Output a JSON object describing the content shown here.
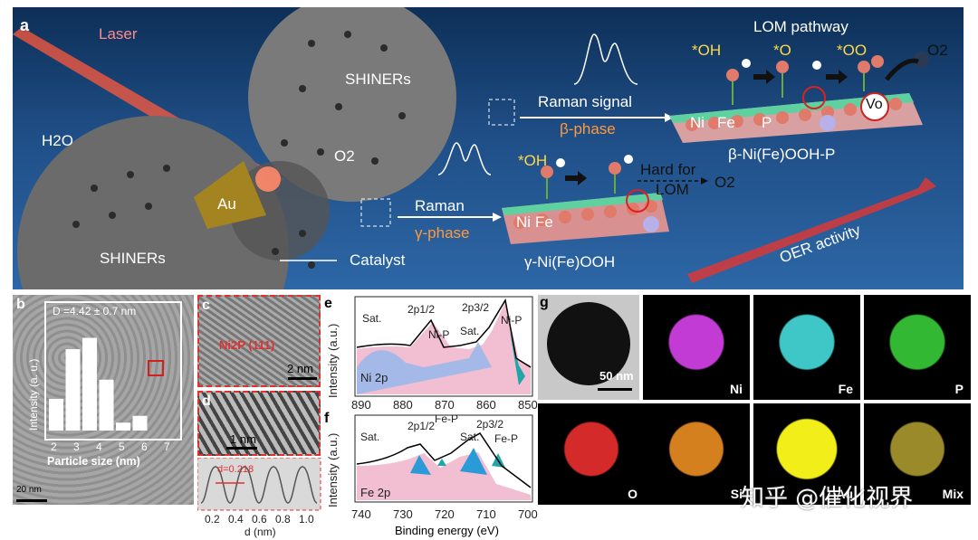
{
  "panel_a": {
    "letter": "a",
    "laser": "Laser",
    "h2o": "H2O",
    "shiners_top": "SHINERs",
    "shiners_bottom": "SHINERs",
    "au": "Au",
    "o2": "O2",
    "catalyst": "Catalyst",
    "raman_signal": "Raman signal",
    "beta_phase": "β-phase",
    "raman": "Raman",
    "gamma_phase": "γ-phase",
    "lom_pathway": "LOM pathway",
    "oh_top": "*OH",
    "o_top": "*O",
    "oo_top": "*OO",
    "o2_top": "O2",
    "ni": "Ni",
    "fe": "Fe",
    "p": "P",
    "vo": "Vo",
    "beta_product": "β-Ni(Fe)OOH-P",
    "oh_bottom": "*OH",
    "hard_for": "Hard for",
    "lom": "LOM",
    "o2_bottom": "O2",
    "ni2": "Ni",
    "fe2": "Fe",
    "gamma_product": "γ-Ni(Fe)OOH",
    "oer": "OER activity"
  },
  "panel_b": {
    "letter": "b",
    "d_text": "D =4.42 ± 0.7 nm",
    "scale": "20 nm",
    "chart_data": {
      "type": "bar",
      "categories": [
        "3",
        "3.5",
        "4",
        "4.5",
        "5",
        "5.5",
        "6",
        "6.5"
      ],
      "values": [
        0.28,
        0.72,
        0.82,
        0.45,
        0.07,
        0.13,
        0,
        0
      ],
      "xlabel": "Particle size (nm)",
      "ylabel": "Intensity (a. u.)",
      "ticks": [
        "2",
        "3",
        "4",
        "5",
        "6",
        "7"
      ]
    }
  },
  "panel_c": {
    "letter": "c",
    "label": "Ni2P (111)",
    "scale": "2 nm"
  },
  "panel_d": {
    "letter": "d",
    "scale": "1 nm",
    "d_value": "d=0.218",
    "xlabel": "d (nm)",
    "ticks": [
      "0.2",
      "0.4",
      "0.6",
      "0.8",
      "1.0"
    ]
  },
  "panel_e": {
    "letter": "e",
    "element": "Ni 2p",
    "ylabel": "Intensity (a.u.)",
    "ticks": [
      "890",
      "880",
      "870",
      "860",
      "850"
    ],
    "peaks": [
      "Sat.",
      "2p1/2",
      "Ni-P",
      "2p3/2",
      "Sat.",
      "Ni-P"
    ]
  },
  "panel_f": {
    "letter": "f",
    "element": "Fe 2p",
    "ylabel": "Intensity (a.u.)",
    "xlabel": "Binding energy (eV)",
    "ticks": [
      "740",
      "730",
      "720",
      "710",
      "700"
    ],
    "peaks": [
      "Sat.",
      "2p1/2",
      "Fe-P",
      "Sat.",
      "2p3/2",
      "Fe-P"
    ]
  },
  "panel_g": {
    "letter": "g",
    "scale": "50 nm",
    "maps": [
      {
        "label": "Ni",
        "color": "#c23bd4"
      },
      {
        "label": "Fe",
        "color": "#3fc7c7"
      },
      {
        "label": "P",
        "color": "#33b833"
      },
      {
        "label": "O",
        "color": "#d42a2a"
      },
      {
        "label": "Si",
        "color": "#d4801f"
      },
      {
        "label": "Au",
        "color": "#f2ee1a"
      },
      {
        "label": "Mix",
        "color": "#9a8a2a"
      }
    ]
  },
  "watermark": "知乎 @催化视界"
}
